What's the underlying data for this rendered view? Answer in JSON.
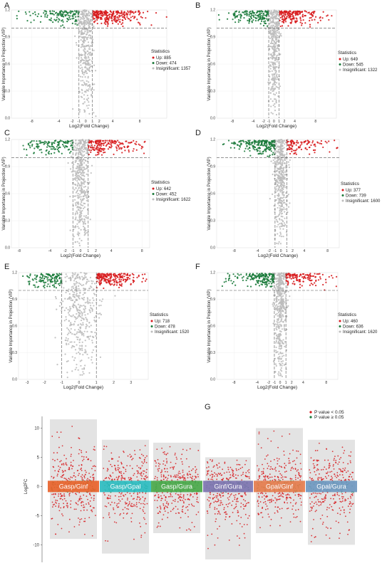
{
  "panels": [
    {
      "letter": "A"
    },
    {
      "letter": "B"
    },
    {
      "letter": "C"
    },
    {
      "letter": "D"
    },
    {
      "letter": "E"
    },
    {
      "letter": "F"
    },
    {
      "letter": "G"
    }
  ],
  "chart_data": [
    {
      "type": "scatter",
      "panel": "A",
      "ylabel": "Variable Importance in Projection (VIP)",
      "xlabel": "Log2(Fold Change)",
      "xticks": [
        "-8",
        "-4",
        "-2",
        "-1",
        "0",
        "1",
        "2",
        "4",
        "8"
      ],
      "yticks": [
        "0.0",
        "0.3",
        "0.6",
        "0.9",
        "1.2"
      ],
      "xlim": [
        -11,
        12
      ],
      "ylim": [
        0,
        1.2
      ],
      "vip_threshold": 1.0,
      "fc_thresholds": [
        -1,
        1
      ],
      "legend_title": "Statistics",
      "series": [
        {
          "name": "Up: 885",
          "count": 885,
          "color": "#d7191c"
        },
        {
          "name": "Down: 474",
          "count": 474,
          "color": "#1a7a3a"
        },
        {
          "name": "Insignificant: 1357",
          "count": 1357,
          "color": "#bdbdbd"
        }
      ]
    },
    {
      "type": "scatter",
      "panel": "B",
      "ylabel": "Variable Importance in Projection (VIP)",
      "xlabel": "Log2(Fold Change)",
      "xticks": [
        "-8",
        "-4",
        "-2",
        "-1",
        "0",
        "1",
        "2",
        "4",
        "8"
      ],
      "yticks": [
        "0.0",
        "0.3",
        "0.6",
        "0.9",
        "1.2"
      ],
      "xlim": [
        -11,
        12
      ],
      "ylim": [
        0,
        1.2
      ],
      "vip_threshold": 1.0,
      "fc_thresholds": [
        -1,
        1
      ],
      "legend_title": "Statistics",
      "series": [
        {
          "name": "Up: 649",
          "count": 649,
          "color": "#d7191c"
        },
        {
          "name": "Down: 545",
          "count": 545,
          "color": "#1a7a3a"
        },
        {
          "name": "Insignificant: 1322",
          "count": 1322,
          "color": "#bdbdbd"
        }
      ]
    },
    {
      "type": "scatter",
      "panel": "C",
      "ylabel": "Variable Importance in Projection (VIP)",
      "xlabel": "Log2(Fold Change)",
      "xticks": [
        "-8",
        "-4",
        "-2",
        "-1",
        "0",
        "1",
        "2",
        "4",
        "8"
      ],
      "yticks": [
        "0.0",
        "0.3",
        "0.6",
        "0.9",
        "1.2"
      ],
      "xlim": [
        -9,
        9
      ],
      "ylim": [
        0,
        1.2
      ],
      "vip_threshold": 1.0,
      "fc_thresholds": [
        -1,
        1
      ],
      "legend_title": "Statistics",
      "series": [
        {
          "name": "Up: 642",
          "count": 642,
          "color": "#d7191c"
        },
        {
          "name": "Down: 452",
          "count": 452,
          "color": "#1a7a3a"
        },
        {
          "name": "Insignificant: 1622",
          "count": 1622,
          "color": "#bdbdbd"
        }
      ]
    },
    {
      "type": "scatter",
      "panel": "D",
      "ylabel": "Variable Importance in Projection (VIP)",
      "xlabel": "Log2(Fold Change)",
      "xticks": [
        "-8",
        "-4",
        "-2",
        "-1",
        "0",
        "1",
        "2",
        "4",
        "8"
      ],
      "yticks": [
        "0.0",
        "0.3",
        "0.6",
        "0.9",
        "1.2"
      ],
      "xlim": [
        -11,
        10
      ],
      "ylim": [
        0,
        1.2
      ],
      "vip_threshold": 1.0,
      "fc_thresholds": [
        -1,
        1
      ],
      "legend_title": "Statistics",
      "series": [
        {
          "name": "Up: 377",
          "count": 377,
          "color": "#d7191c"
        },
        {
          "name": "Down: 739",
          "count": 739,
          "color": "#1a7a3a"
        },
        {
          "name": "Insignificant: 1600",
          "count": 1600,
          "color": "#bdbdbd"
        }
      ]
    },
    {
      "type": "scatter",
      "panel": "E",
      "ylabel": "Variable Importance in Projection (VIP)",
      "xlabel": "Log2(Fold Change)",
      "xticks": [
        "-3",
        "-2",
        "-1",
        "0",
        "1",
        "2",
        "3"
      ],
      "yticks": [
        "0.0",
        "0.3",
        "0.6",
        "0.9",
        "1.2"
      ],
      "xlim": [
        -3.5,
        4
      ],
      "ylim": [
        0,
        1.2
      ],
      "vip_threshold": 1.0,
      "fc_thresholds": [
        -1,
        1
      ],
      "legend_title": "Statistics",
      "series": [
        {
          "name": "Up: 718",
          "count": 718,
          "color": "#d7191c"
        },
        {
          "name": "Down: 478",
          "count": 478,
          "color": "#1a7a3a"
        },
        {
          "name": "Insignificant: 1520",
          "count": 1520,
          "color": "#bdbdbd"
        }
      ]
    },
    {
      "type": "scatter",
      "panel": "F",
      "ylabel": "Variable Importance in Projection (VIP)",
      "xlabel": "Log2(Fold Change)",
      "xticks": [
        "-8",
        "-4",
        "-2",
        "-1",
        "0",
        "1",
        "2",
        "4",
        "8"
      ],
      "yticks": [
        "0.0",
        "0.3",
        "0.6",
        "0.9",
        "1.2"
      ],
      "xlim": [
        -11,
        10
      ],
      "ylim": [
        0,
        1.2
      ],
      "vip_threshold": 1.0,
      "fc_thresholds": [
        -1,
        1
      ],
      "legend_title": "Statistics",
      "series": [
        {
          "name": "Up: 460",
          "count": 460,
          "color": "#d7191c"
        },
        {
          "name": "Down: 636",
          "count": 636,
          "color": "#1a7a3a"
        },
        {
          "name": "Insignificant: 1620",
          "count": 1620,
          "color": "#bdbdbd"
        }
      ]
    },
    {
      "type": "scatter",
      "panel": "G",
      "ylabel": "Log2FC",
      "yticks": [
        "10",
        "5",
        "0",
        "-5",
        "-10"
      ],
      "ylim": [
        -13,
        12
      ],
      "categories": [
        "Gasp/Ginf",
        "Gasp/Gpal",
        "Gasp/Gura",
        "Ginf/Gura",
        "Gpal/Ginf",
        "Gpal/Gura"
      ],
      "category_colors": [
        "#e8632b",
        "#2cbcc0",
        "#4aa84a",
        "#7d74b0",
        "#e57c4c",
        "#6f98c0"
      ],
      "legend": [
        {
          "name": "P value < 0.05",
          "color": "#d7191c"
        },
        {
          "name": "P value ≥ 0.05",
          "color": "#1a7a3a"
        }
      ]
    }
  ]
}
